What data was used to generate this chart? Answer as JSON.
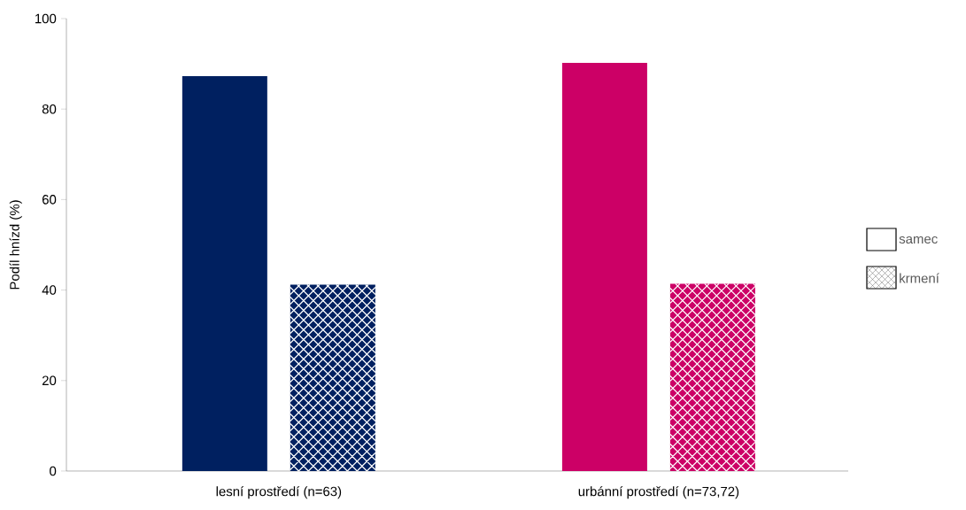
{
  "chart_data": {
    "type": "bar",
    "ylabel": "Podíl hnízd (%)",
    "categories": [
      "lesní prostředí (n=63)",
      "urbánní prostředí (n=73,72)"
    ],
    "ylim": [
      0,
      100
    ],
    "yticks": [
      0,
      20,
      40,
      60,
      80,
      100
    ],
    "legend": "right",
    "series": [
      {
        "name": "samec",
        "colors": [
          "#002060",
          "#cc0066"
        ],
        "values": [
          87.3,
          90.2
        ]
      },
      {
        "name": "krmení",
        "colors": [
          "#002060",
          "#cc0066"
        ],
        "values": [
          41.2,
          41.4
        ]
      }
    ]
  }
}
